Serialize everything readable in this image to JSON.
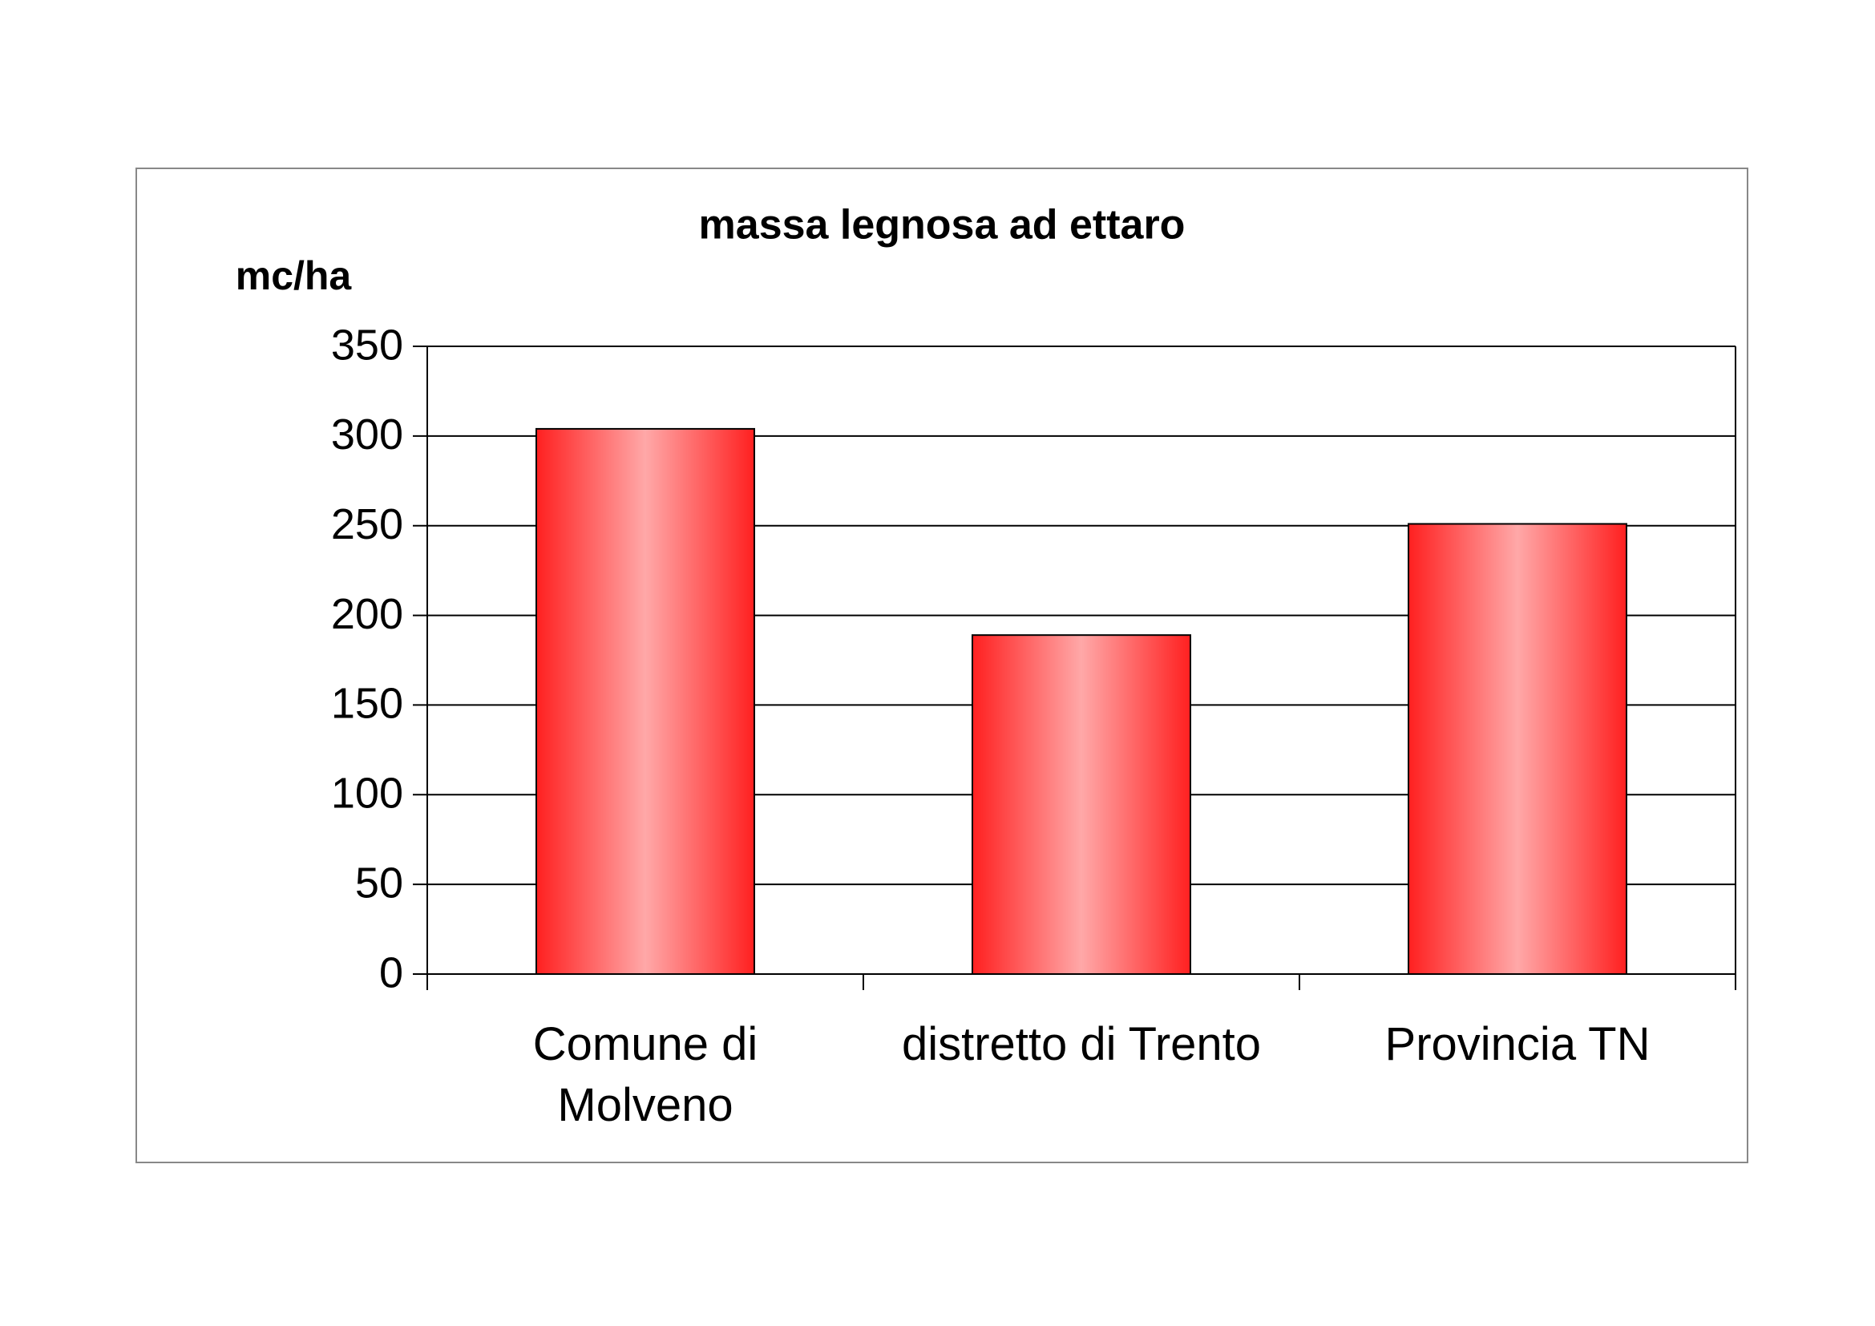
{
  "chart_data": {
    "type": "bar",
    "title": "massa legnosa ad ettaro",
    "y_axis_label": "mc/ha",
    "categories": [
      "Comune di\nMolveno",
      "distretto di Trento",
      "Provincia TN"
    ],
    "values": [
      304,
      189,
      251
    ],
    "color": "#ff2020",
    "ylim": [
      0,
      350
    ],
    "yticks": [
      0,
      50,
      100,
      150,
      200,
      250,
      300,
      350
    ],
    "grid": true
  }
}
